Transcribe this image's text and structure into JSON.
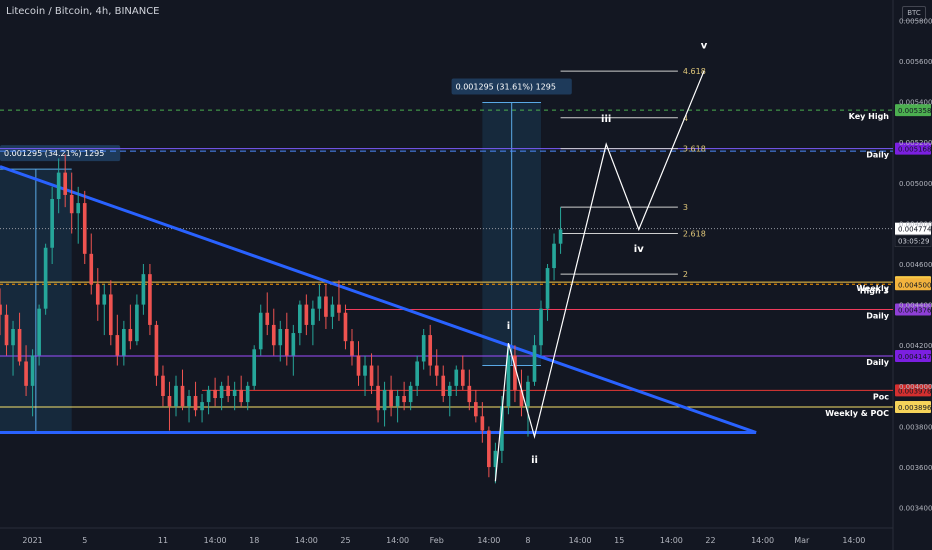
{
  "header": {
    "title": "Litecoin / Bitcoin, 4h, BINANCE",
    "currency_badge": "BTC"
  },
  "colors": {
    "background": "#131722",
    "candle_up": "#26a69a",
    "candle_down": "#ef5350",
    "trendline": "#2962ff",
    "wave": "#ffffff",
    "fib": "#e0c77a"
  },
  "chart_data": {
    "type": "candlestick",
    "xlabel": "",
    "ylabel": "",
    "x_ticks": [
      "2021",
      "5",
      "11",
      "14:00",
      "18",
      "14:00",
      "25",
      "14:00",
      "Feb",
      "14:00",
      "8",
      "14:00",
      "15",
      "14:00",
      "22",
      "14:00",
      "Mar",
      "14:00"
    ],
    "x_tick_positions": [
      0.5,
      4.5,
      10.5,
      14.5,
      17.5,
      21.5,
      24.5,
      28.5,
      31.5,
      35.5,
      38.5,
      42.5,
      45.5,
      49.5,
      52.5,
      56.5,
      59.5,
      63.5
    ],
    "x_range": [
      -2,
      66.5
    ],
    "y_ticks": [
      0.0058,
      0.0056,
      0.0054,
      0.0052,
      0.005,
      0.0048,
      0.0046,
      0.0044,
      0.0042,
      0.004,
      0.0038,
      0.0036,
      0.0034
    ],
    "y_range": [
      0.0033,
      0.0059
    ],
    "current_price": {
      "value": 0.004774,
      "label": "0.004774",
      "countdown": "03:05:29"
    },
    "candles": [
      [
        -2,
        0.0044,
        0.00448,
        0.00425,
        0.00435
      ],
      [
        -1.5,
        0.00435,
        0.0044,
        0.00415,
        0.0042
      ],
      [
        -1,
        0.0042,
        0.00432,
        0.00405,
        0.00428
      ],
      [
        -0.5,
        0.00428,
        0.00436,
        0.0041,
        0.00412
      ],
      [
        0,
        0.00412,
        0.0042,
        0.00395,
        0.004
      ],
      [
        0.5,
        0.004,
        0.00418,
        0.00385,
        0.00415
      ],
      [
        1,
        0.00415,
        0.0044,
        0.0041,
        0.00438
      ],
      [
        1.5,
        0.00438,
        0.0047,
        0.00435,
        0.00468
      ],
      [
        2,
        0.00468,
        0.00498,
        0.0046,
        0.00492
      ],
      [
        2.5,
        0.00492,
        0.00512,
        0.00485,
        0.00505
      ],
      [
        3,
        0.00505,
        0.00514,
        0.00488,
        0.00494
      ],
      [
        3.5,
        0.00494,
        0.00505,
        0.00475,
        0.00485
      ],
      [
        4,
        0.00485,
        0.00498,
        0.0047,
        0.0049
      ],
      [
        4.5,
        0.0049,
        0.00496,
        0.0046,
        0.00465
      ],
      [
        5,
        0.00465,
        0.00475,
        0.00445,
        0.0045
      ],
      [
        5.5,
        0.0045,
        0.00458,
        0.00432,
        0.0044
      ],
      [
        6,
        0.0044,
        0.0045,
        0.00425,
        0.00445
      ],
      [
        6.5,
        0.00445,
        0.00452,
        0.0042,
        0.00425
      ],
      [
        7,
        0.00425,
        0.00435,
        0.0041,
        0.00415
      ],
      [
        7.5,
        0.00415,
        0.00432,
        0.0041,
        0.00428
      ],
      [
        8,
        0.00428,
        0.0044,
        0.00418,
        0.00422
      ],
      [
        8.5,
        0.00422,
        0.00445,
        0.0042,
        0.0044
      ],
      [
        9,
        0.0044,
        0.0046,
        0.00435,
        0.00455
      ],
      [
        9.5,
        0.00455,
        0.0046,
        0.00425,
        0.0043
      ],
      [
        10,
        0.0043,
        0.00432,
        0.004,
        0.00405
      ],
      [
        10.5,
        0.00405,
        0.0041,
        0.0039,
        0.00395
      ],
      [
        11,
        0.00395,
        0.00402,
        0.00378,
        0.0039
      ],
      [
        11.5,
        0.0039,
        0.00405,
        0.00385,
        0.004
      ],
      [
        12,
        0.004,
        0.00408,
        0.00388,
        0.0039
      ],
      [
        12.5,
        0.0039,
        0.00398,
        0.00382,
        0.00395
      ],
      [
        13,
        0.00395,
        0.00402,
        0.00385,
        0.00388
      ],
      [
        13.5,
        0.00388,
        0.00396,
        0.00382,
        0.00392
      ],
      [
        14,
        0.00392,
        0.004,
        0.00386,
        0.00398
      ],
      [
        14.5,
        0.00398,
        0.00404,
        0.0039,
        0.00394
      ],
      [
        15,
        0.00394,
        0.00402,
        0.00388,
        0.004
      ],
      [
        15.5,
        0.004,
        0.00405,
        0.00392,
        0.00395
      ],
      [
        16,
        0.00395,
        0.00402,
        0.00388,
        0.00398
      ],
      [
        16.5,
        0.00398,
        0.00405,
        0.0039,
        0.00392
      ],
      [
        17,
        0.00392,
        0.00402,
        0.00388,
        0.004
      ],
      [
        17.5,
        0.004,
        0.0042,
        0.00398,
        0.00418
      ],
      [
        18,
        0.00418,
        0.0044,
        0.00415,
        0.00436
      ],
      [
        18.5,
        0.00436,
        0.00446,
        0.00425,
        0.0043
      ],
      [
        19,
        0.0043,
        0.00438,
        0.00415,
        0.0042
      ],
      [
        19.5,
        0.0042,
        0.00432,
        0.00412,
        0.00428
      ],
      [
        20,
        0.00428,
        0.00436,
        0.0041,
        0.00415
      ],
      [
        20.5,
        0.00415,
        0.0043,
        0.00405,
        0.00426
      ],
      [
        21,
        0.00426,
        0.00442,
        0.0042,
        0.0044
      ],
      [
        21.5,
        0.0044,
        0.00445,
        0.00425,
        0.0043
      ],
      [
        22,
        0.0043,
        0.00442,
        0.0042,
        0.00438
      ],
      [
        22.5,
        0.00438,
        0.0045,
        0.00432,
        0.00444
      ],
      [
        23,
        0.00444,
        0.0045,
        0.00428,
        0.00434
      ],
      [
        23.5,
        0.00434,
        0.00444,
        0.00428,
        0.0044
      ],
      [
        24,
        0.0044,
        0.00452,
        0.00432,
        0.00436
      ],
      [
        24.5,
        0.00436,
        0.0044,
        0.00418,
        0.00422
      ],
      [
        25,
        0.00422,
        0.00428,
        0.0041,
        0.00415
      ],
      [
        25.5,
        0.00415,
        0.00422,
        0.004,
        0.00405
      ],
      [
        26,
        0.00405,
        0.00415,
        0.00395,
        0.0041
      ],
      [
        26.5,
        0.0041,
        0.00416,
        0.00396,
        0.004
      ],
      [
        27,
        0.004,
        0.0041,
        0.00382,
        0.00388
      ],
      [
        27.5,
        0.00388,
        0.00402,
        0.0038,
        0.00398
      ],
      [
        28,
        0.00398,
        0.00405,
        0.00385,
        0.0039
      ],
      [
        28.5,
        0.0039,
        0.00398,
        0.00382,
        0.00395
      ],
      [
        29,
        0.00395,
        0.00402,
        0.00388,
        0.00392
      ],
      [
        29.5,
        0.00392,
        0.00402,
        0.00388,
        0.004
      ],
      [
        30,
        0.004,
        0.00415,
        0.00395,
        0.00412
      ],
      [
        30.5,
        0.00412,
        0.00428,
        0.00408,
        0.00425
      ],
      [
        31,
        0.00425,
        0.0043,
        0.00405,
        0.0041
      ],
      [
        31.5,
        0.0041,
        0.00418,
        0.004,
        0.00405
      ],
      [
        32,
        0.00405,
        0.0041,
        0.00392,
        0.00395
      ],
      [
        32.5,
        0.00395,
        0.00402,
        0.00385,
        0.004
      ],
      [
        33,
        0.004,
        0.0041,
        0.00395,
        0.00408
      ],
      [
        33.5,
        0.00408,
        0.00415,
        0.00398,
        0.004
      ],
      [
        34,
        0.004,
        0.00408,
        0.00388,
        0.00392
      ],
      [
        34.5,
        0.00392,
        0.00398,
        0.00382,
        0.00385
      ],
      [
        35,
        0.00385,
        0.00392,
        0.00372,
        0.00378
      ],
      [
        35.5,
        0.00378,
        0.0038,
        0.00355,
        0.0036
      ],
      [
        36,
        0.0036,
        0.00372,
        0.00352,
        0.00368
      ],
      [
        36.5,
        0.00368,
        0.00395,
        0.00362,
        0.0039
      ],
      [
        37,
        0.0039,
        0.0042,
        0.00386,
        0.00415
      ],
      [
        37.5,
        0.00415,
        0.0042,
        0.00392,
        0.00398
      ],
      [
        38,
        0.00398,
        0.00408,
        0.00385,
        0.0039
      ],
      [
        38.5,
        0.0039,
        0.00405,
        0.00375,
        0.00402
      ],
      [
        39,
        0.00402,
        0.00425,
        0.004,
        0.0042
      ],
      [
        39.5,
        0.0042,
        0.00442,
        0.00415,
        0.00438
      ],
      [
        40,
        0.00438,
        0.0046,
        0.00432,
        0.00458
      ],
      [
        40.5,
        0.00458,
        0.00475,
        0.00452,
        0.0047
      ],
      [
        41,
        0.0047,
        0.00488,
        0.00465,
        0.00477
      ]
    ],
    "horizontal_levels": [
      {
        "value": 0.005156,
        "color": "#4d8dff",
        "dash": "6,4",
        "label": ""
      },
      {
        "value": 0.005168,
        "color": "#7b5cff",
        "dash": "",
        "label": "Daily",
        "badge": "0.005168",
        "badge_color": "#7b1fe0"
      },
      {
        "value": 0.004511,
        "color": "#f7c948",
        "dash": "",
        "label": "Weekly",
        "badge": "0.004511",
        "badge_color": "#f7c948"
      },
      {
        "value": 0.0045,
        "color": "#ff9800",
        "dash": "3,3",
        "label": "High 3",
        "badge": "0.004500",
        "badge_color": "#f2b33d"
      },
      {
        "value": 0.004376,
        "color": "#ef3b5c",
        "dash": "",
        "label": "Daily",
        "badge": "0.004376",
        "badge_color": "#8e3fd6",
        "x0": 24.5
      },
      {
        "value": 0.004147,
        "color": "#9c4dff",
        "dash": "",
        "label": "Daily",
        "badge": "0.004147",
        "badge_color": "#7b1fe0"
      },
      {
        "value": 0.003978,
        "color": "#e53935",
        "dash": "",
        "label": "Poc",
        "badge": "0.003978",
        "badge_color": "#d32f2f",
        "x0": 13.5
      },
      {
        "value": 0.003896,
        "color": "#f7e16b",
        "dash": "",
        "label": "Weekly & POC",
        "badge": "0.003896",
        "badge_color": "#f5d35a"
      },
      {
        "value": 0.005358,
        "color": "#4caf50",
        "dash": "4,4",
        "label": "Key High",
        "badge": "0.005358",
        "badge_color": "#4caf50"
      }
    ],
    "fib_levels": [
      {
        "ratio": "4.618",
        "value": 0.00555
      },
      {
        "ratio": "4",
        "value": 0.00532
      },
      {
        "ratio": "3.618",
        "value": 0.005168
      },
      {
        "ratio": "3",
        "value": 0.00488
      },
      {
        "ratio": "2.618",
        "value": 0.00475
      },
      {
        "ratio": "2",
        "value": 0.00455
      }
    ],
    "fib_x_range": [
      41,
      50
    ],
    "trendlines": [
      {
        "points": [
          [
            -2,
            0.00508
          ],
          [
            56,
            0.00377
          ]
        ],
        "color": "#2962ff",
        "width": 3
      },
      {
        "points": [
          [
            -2,
            0.00377
          ],
          [
            56,
            0.00377
          ]
        ],
        "color": "#2962ff",
        "width": 3
      }
    ],
    "wave": {
      "points": [
        [
          36,
          0.00353
        ],
        [
          37,
          0.00421
        ],
        [
          39,
          0.00375
        ],
        [
          44.5,
          0.00519
        ],
        [
          47,
          0.00477
        ],
        [
          52,
          0.00555
        ]
      ],
      "labels": [
        {
          "text": "i",
          "x": 37,
          "y": 0.00428
        },
        {
          "text": "ii",
          "x": 39,
          "y": 0.00362
        },
        {
          "text": "iii",
          "x": 44.5,
          "y": 0.0053
        },
        {
          "text": "iv",
          "x": 47,
          "y": 0.00466
        },
        {
          "text": "v",
          "x": 52,
          "y": 0.00566
        }
      ]
    },
    "measure_boxes": [
      {
        "x0": -2,
        "x1": 3.5,
        "y0": 0.003772,
        "y1": 0.005067,
        "label": "0.001295 (34.21%) 1295"
      },
      {
        "x0": 35,
        "x1": 39.5,
        "y0": 0.0041,
        "y1": 0.005395,
        "label": "0.001295 (31.61%) 1295"
      }
    ]
  }
}
